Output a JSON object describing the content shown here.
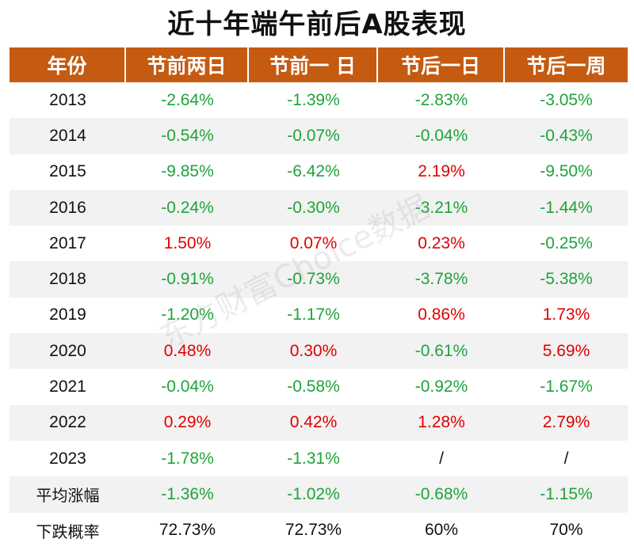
{
  "title": "近十年端午前后A股表现",
  "watermark": "东方财富Choice数据",
  "colors": {
    "header_bg": "#c55a11",
    "negative": "#1fa33a",
    "positive": "#e00000"
  },
  "chart_data": {
    "type": "table",
    "title": "近十年端午前后A股表现",
    "columns": [
      "年份",
      "节前两日",
      "节前一 日",
      "节后一日",
      "节后一周"
    ],
    "rows": [
      [
        "2013",
        "-2.64%",
        "-1.39%",
        "-2.83%",
        "-3.05%"
      ],
      [
        "2014",
        "-0.54%",
        "-0.07%",
        "-0.04%",
        "-0.43%"
      ],
      [
        "2015",
        "-9.85%",
        "-6.42%",
        "2.19%",
        "-9.50%"
      ],
      [
        "2016",
        "-0.24%",
        "-0.30%",
        "-3.21%",
        "-1.44%"
      ],
      [
        "2017",
        "1.50%",
        "0.07%",
        "0.23%",
        "-0.25%"
      ],
      [
        "2018",
        "-0.91%",
        "-0.73%",
        "-3.78%",
        "-5.38%"
      ],
      [
        "2019",
        "-1.20%",
        "-1.17%",
        "0.86%",
        "1.73%"
      ],
      [
        "2020",
        "0.48%",
        "0.30%",
        "-0.61%",
        "5.69%"
      ],
      [
        "2021",
        "-0.04%",
        "-0.58%",
        "-0.92%",
        "-1.67%"
      ],
      [
        "2022",
        "0.29%",
        "0.42%",
        "1.28%",
        "2.79%"
      ],
      [
        "2023",
        "-1.78%",
        "-1.31%",
        "/",
        "/"
      ],
      [
        "平均涨幅",
        "-1.36%",
        "-1.02%",
        "-0.68%",
        "-1.15%"
      ],
      [
        "下跌概率",
        "72.73%",
        "72.73%",
        "60%",
        "70%"
      ]
    ]
  }
}
